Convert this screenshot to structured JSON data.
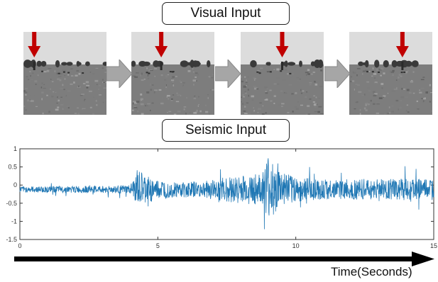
{
  "visual_input_label": "Visual Input",
  "seismic_input_label": "Seismic Input",
  "time_axis_label": "Time(Seconds)",
  "frames": [
    {
      "marker_fraction": 0.13
    },
    {
      "marker_fraction": 0.36
    },
    {
      "marker_fraction": 0.5
    },
    {
      "marker_fraction": 0.64
    }
  ],
  "colors": {
    "marker": "#c00000",
    "signal": "#1f77b4",
    "flow_arrow": "#a6a6a6",
    "sky": "#dcdcdc",
    "field": "#7d7d7d"
  },
  "chart_data": {
    "type": "line",
    "xlim": [
      0,
      15
    ],
    "ylim": [
      -1.5,
      1
    ],
    "xticks": [
      "0",
      "5",
      "10",
      "15"
    ],
    "xtick_values": [
      0,
      5,
      10,
      15
    ],
    "yticks": [
      "1",
      "0.5",
      "0",
      "-0.5",
      "-1",
      "-1.5"
    ],
    "ytick_values": [
      1,
      0.5,
      0,
      -0.5,
      -1,
      -1.5
    ],
    "series": [
      {
        "baseline": -0.12,
        "envelope": [
          [
            0,
            0.08
          ],
          [
            1.5,
            0.09
          ],
          [
            3.0,
            0.1
          ],
          [
            4.0,
            0.12
          ],
          [
            4.3,
            0.5
          ],
          [
            4.8,
            0.3
          ],
          [
            5.5,
            0.22
          ],
          [
            6.5,
            0.22
          ],
          [
            7.0,
            0.28
          ],
          [
            7.6,
            0.35
          ],
          [
            8.2,
            0.4
          ],
          [
            8.8,
            0.45
          ],
          [
            9.0,
            0.95
          ],
          [
            9.3,
            0.6
          ],
          [
            9.8,
            0.4
          ],
          [
            10.5,
            0.3
          ],
          [
            11.5,
            0.25
          ],
          [
            12.0,
            0.3
          ],
          [
            13.0,
            0.28
          ],
          [
            14.0,
            0.3
          ],
          [
            15.0,
            0.28
          ]
        ]
      }
    ]
  }
}
